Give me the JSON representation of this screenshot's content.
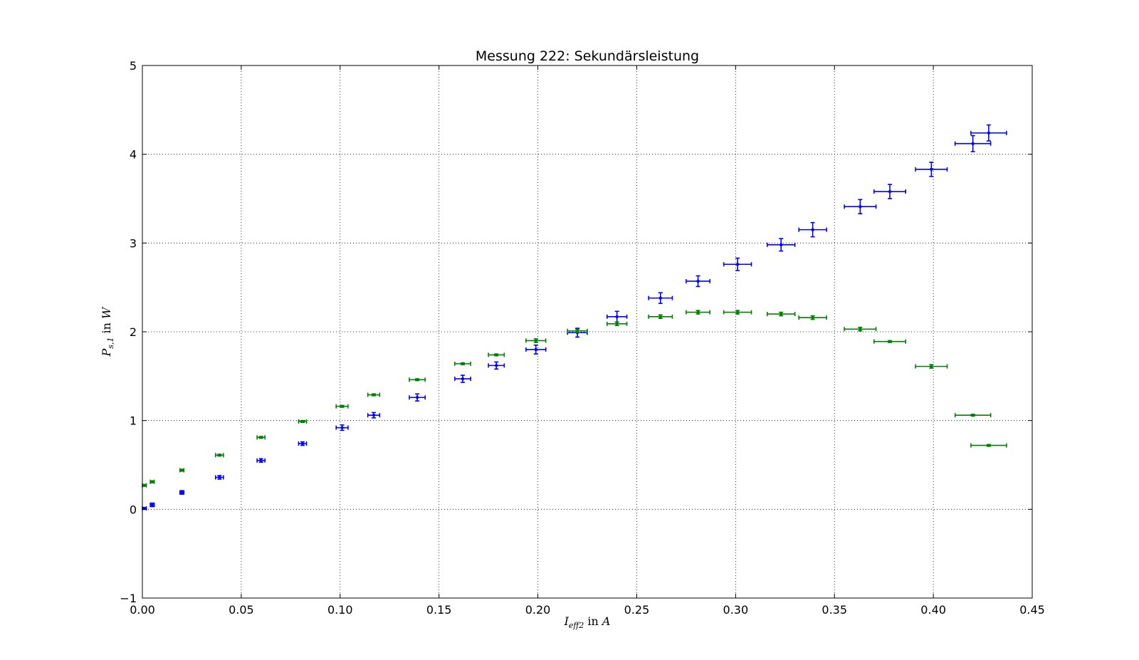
{
  "chart_data": {
    "type": "scatter",
    "title": "Messung 222: Sekundärsleistung",
    "xlabel": {
      "var": "I",
      "sub": "eff2",
      "text": " in ",
      "unit": "A"
    },
    "ylabel": {
      "var": "P",
      "sub": "s,1",
      "text": " in ",
      "unit": "W"
    },
    "xlim": [
      0.0,
      0.45
    ],
    "ylim": [
      -1,
      5
    ],
    "xticks": [
      0.0,
      0.05,
      0.1,
      0.15,
      0.2,
      0.25,
      0.3,
      0.35,
      0.4,
      0.45
    ],
    "xtick_labels": [
      "0.00",
      "0.05",
      "0.10",
      "0.15",
      "0.20",
      "0.25",
      "0.30",
      "0.35",
      "0.40",
      "0.45"
    ],
    "yticks": [
      -1,
      0,
      1,
      2,
      3,
      4,
      5
    ],
    "ytick_labels": [
      "−1",
      "0",
      "1",
      "2",
      "3",
      "4",
      "5"
    ],
    "grid": true,
    "series": [
      {
        "name": "blue",
        "color": "#0000ff",
        "points": [
          {
            "x": 0.001,
            "y": 0.01,
            "xerr": 0.001,
            "yerr": 0.01
          },
          {
            "x": 0.005,
            "y": 0.05,
            "xerr": 0.001,
            "yerr": 0.02
          },
          {
            "x": 0.02,
            "y": 0.19,
            "xerr": 0.001,
            "yerr": 0.02
          },
          {
            "x": 0.039,
            "y": 0.36,
            "xerr": 0.002,
            "yerr": 0.02
          },
          {
            "x": 0.06,
            "y": 0.55,
            "xerr": 0.002,
            "yerr": 0.02
          },
          {
            "x": 0.081,
            "y": 0.74,
            "xerr": 0.002,
            "yerr": 0.02
          },
          {
            "x": 0.101,
            "y": 0.92,
            "xerr": 0.003,
            "yerr": 0.03
          },
          {
            "x": 0.117,
            "y": 1.06,
            "xerr": 0.003,
            "yerr": 0.03
          },
          {
            "x": 0.139,
            "y": 1.26,
            "xerr": 0.004,
            "yerr": 0.04
          },
          {
            "x": 0.162,
            "y": 1.47,
            "xerr": 0.004,
            "yerr": 0.04
          },
          {
            "x": 0.179,
            "y": 1.62,
            "xerr": 0.004,
            "yerr": 0.04
          },
          {
            "x": 0.199,
            "y": 1.8,
            "xerr": 0.005,
            "yerr": 0.05
          },
          {
            "x": 0.22,
            "y": 1.99,
            "xerr": 0.005,
            "yerr": 0.05
          },
          {
            "x": 0.24,
            "y": 2.17,
            "xerr": 0.005,
            "yerr": 0.06
          },
          {
            "x": 0.262,
            "y": 2.38,
            "xerr": 0.006,
            "yerr": 0.06
          },
          {
            "x": 0.281,
            "y": 2.57,
            "xerr": 0.006,
            "yerr": 0.06
          },
          {
            "x": 0.301,
            "y": 2.76,
            "xerr": 0.007,
            "yerr": 0.07
          },
          {
            "x": 0.323,
            "y": 2.98,
            "xerr": 0.007,
            "yerr": 0.07
          },
          {
            "x": 0.339,
            "y": 3.15,
            "xerr": 0.007,
            "yerr": 0.08
          },
          {
            "x": 0.363,
            "y": 3.41,
            "xerr": 0.008,
            "yerr": 0.08
          },
          {
            "x": 0.378,
            "y": 3.58,
            "xerr": 0.008,
            "yerr": 0.08
          },
          {
            "x": 0.399,
            "y": 3.83,
            "xerr": 0.008,
            "yerr": 0.08
          },
          {
            "x": 0.42,
            "y": 4.12,
            "xerr": 0.009,
            "yerr": 0.09
          },
          {
            "x": 0.428,
            "y": 4.24,
            "xerr": 0.009,
            "yerr": 0.09
          }
        ]
      },
      {
        "name": "green",
        "color": "#008000",
        "points": [
          {
            "x": 0.001,
            "y": 0.27,
            "xerr": 0.001,
            "yerr": 0.01
          },
          {
            "x": 0.005,
            "y": 0.31,
            "xerr": 0.001,
            "yerr": 0.01
          },
          {
            "x": 0.02,
            "y": 0.44,
            "xerr": 0.001,
            "yerr": 0.01
          },
          {
            "x": 0.039,
            "y": 0.61,
            "xerr": 0.002,
            "yerr": 0.01
          },
          {
            "x": 0.06,
            "y": 0.81,
            "xerr": 0.002,
            "yerr": 0.01
          },
          {
            "x": 0.081,
            "y": 0.99,
            "xerr": 0.002,
            "yerr": 0.01
          },
          {
            "x": 0.101,
            "y": 1.16,
            "xerr": 0.003,
            "yerr": 0.01
          },
          {
            "x": 0.117,
            "y": 1.29,
            "xerr": 0.003,
            "yerr": 0.01
          },
          {
            "x": 0.139,
            "y": 1.46,
            "xerr": 0.004,
            "yerr": 0.01
          },
          {
            "x": 0.162,
            "y": 1.64,
            "xerr": 0.004,
            "yerr": 0.01
          },
          {
            "x": 0.179,
            "y": 1.74,
            "xerr": 0.004,
            "yerr": 0.01
          },
          {
            "x": 0.199,
            "y": 1.9,
            "xerr": 0.005,
            "yerr": 0.02
          },
          {
            "x": 0.22,
            "y": 2.01,
            "xerr": 0.005,
            "yerr": 0.02
          },
          {
            "x": 0.24,
            "y": 2.09,
            "xerr": 0.005,
            "yerr": 0.02
          },
          {
            "x": 0.262,
            "y": 2.17,
            "xerr": 0.006,
            "yerr": 0.02
          },
          {
            "x": 0.281,
            "y": 2.22,
            "xerr": 0.006,
            "yerr": 0.02
          },
          {
            "x": 0.301,
            "y": 2.22,
            "xerr": 0.007,
            "yerr": 0.02
          },
          {
            "x": 0.323,
            "y": 2.2,
            "xerr": 0.007,
            "yerr": 0.02
          },
          {
            "x": 0.339,
            "y": 2.16,
            "xerr": 0.007,
            "yerr": 0.02
          },
          {
            "x": 0.363,
            "y": 2.03,
            "xerr": 0.008,
            "yerr": 0.02
          },
          {
            "x": 0.378,
            "y": 1.89,
            "xerr": 0.008,
            "yerr": 0.01
          },
          {
            "x": 0.399,
            "y": 1.61,
            "xerr": 0.008,
            "yerr": 0.02
          },
          {
            "x": 0.42,
            "y": 1.06,
            "xerr": 0.009,
            "yerr": 0.01
          },
          {
            "x": 0.428,
            "y": 0.72,
            "xerr": 0.009,
            "yerr": 0.01
          }
        ]
      }
    ]
  }
}
